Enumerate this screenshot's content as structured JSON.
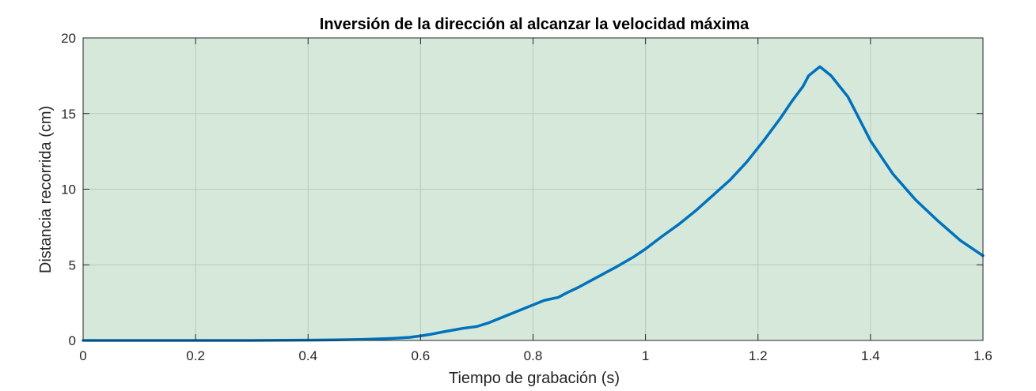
{
  "chart_data": {
    "type": "line",
    "title": "Inversión de la dirección al alcanzar la velocidad máxima",
    "xlabel": "Tiempo de grabación (s)",
    "ylabel": "Distancia recorrida (cm)",
    "xlim": [
      0,
      1.6
    ],
    "ylim": [
      0,
      20
    ],
    "xticks": [
      0,
      0.2,
      0.4,
      0.6,
      0.8,
      1.0,
      1.2,
      1.4,
      1.6
    ],
    "xtick_labels": [
      "0",
      "0.2",
      "0.4",
      "0.6",
      "0.8",
      "1",
      "1.2",
      "1.4",
      "1.6"
    ],
    "yticks": [
      0,
      5,
      10,
      15,
      20
    ],
    "ytick_labels": [
      "0",
      "5",
      "10",
      "15",
      "20"
    ],
    "grid": true,
    "legend": "none",
    "background_color": "#d5e8da",
    "grid_color": "#b7c9bd",
    "axis_color": "#262626",
    "series": [
      {
        "color": "#0072bd",
        "x": [
          0,
          0.1,
          0.2,
          0.3,
          0.4,
          0.45,
          0.5,
          0.55,
          0.58,
          0.6,
          0.62,
          0.645,
          0.66,
          0.675,
          0.7,
          0.72,
          0.74,
          0.76,
          0.78,
          0.8,
          0.82,
          0.845,
          0.86,
          0.88,
          0.9,
          0.92,
          0.95,
          0.98,
          1.0,
          1.03,
          1.06,
          1.09,
          1.12,
          1.15,
          1.18,
          1.21,
          1.24,
          1.26,
          1.28,
          1.29,
          1.31,
          1.33,
          1.36,
          1.4,
          1.44,
          1.48,
          1.52,
          1.56,
          1.6
        ],
        "y": [
          0,
          0,
          0,
          0,
          0.02,
          0.04,
          0.07,
          0.14,
          0.2,
          0.3,
          0.42,
          0.6,
          0.7,
          0.8,
          0.92,
          1.15,
          1.45,
          1.75,
          2.05,
          2.35,
          2.65,
          2.85,
          3.15,
          3.5,
          3.9,
          4.3,
          4.9,
          5.55,
          6.05,
          6.9,
          7.7,
          8.6,
          9.6,
          10.6,
          11.8,
          13.2,
          14.7,
          15.8,
          16.8,
          17.5,
          18.1,
          17.5,
          16.1,
          13.2,
          11.0,
          9.3,
          7.9,
          6.6,
          5.6
        ]
      }
    ]
  }
}
